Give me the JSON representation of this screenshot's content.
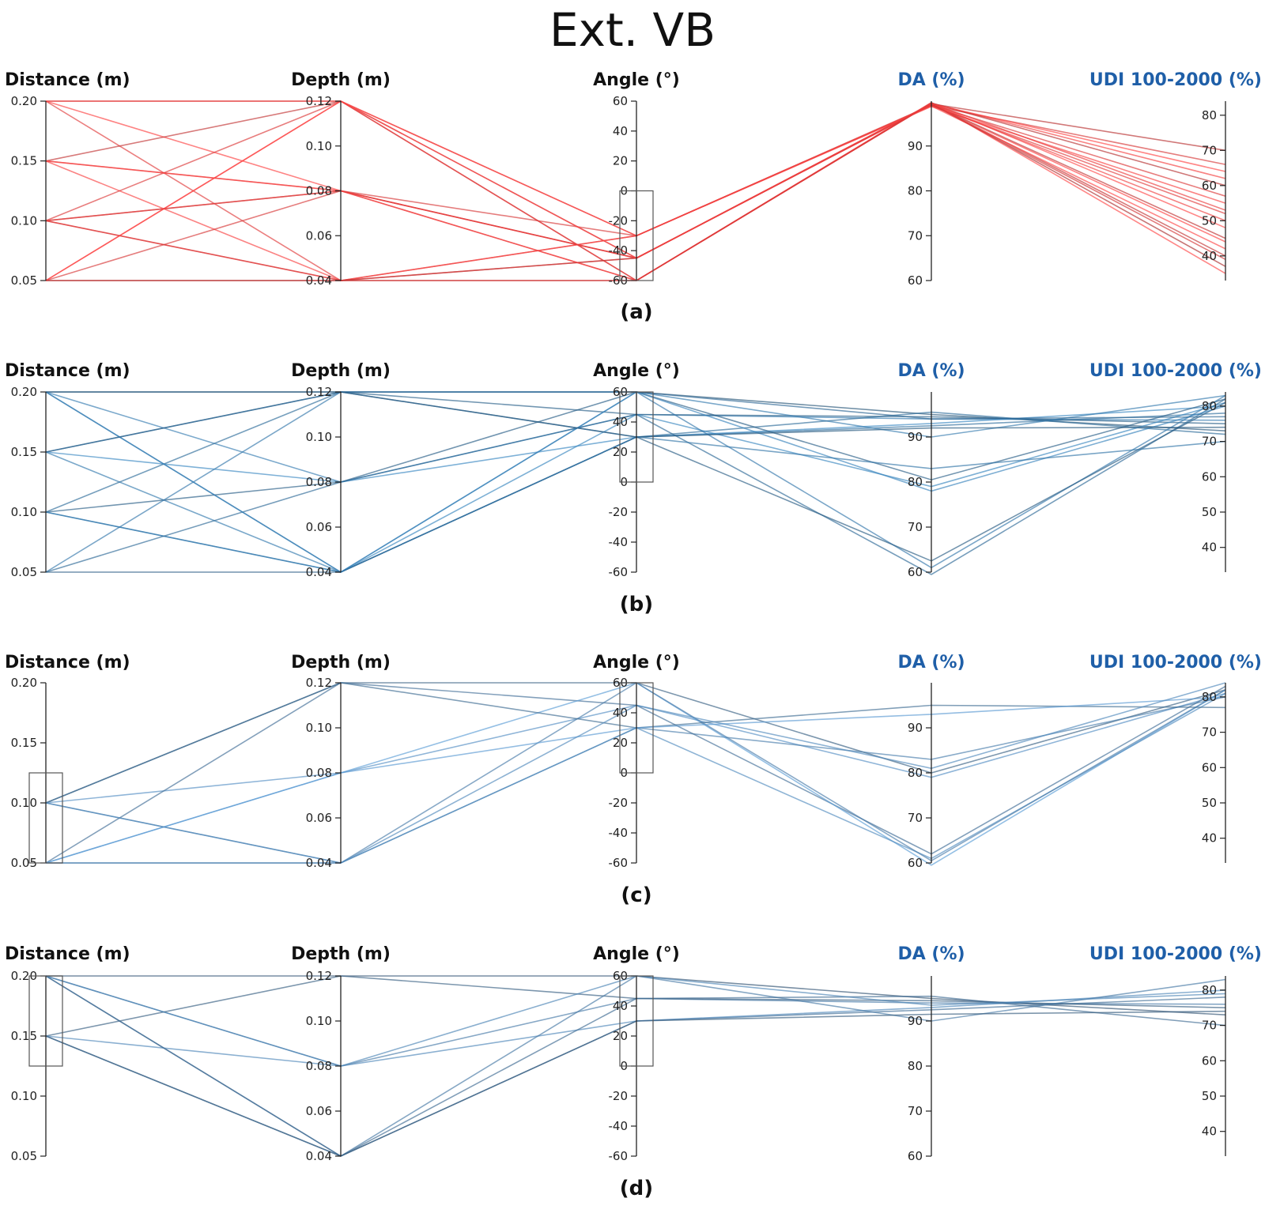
{
  "title": "Ext. VB",
  "chart_data": [
    {
      "type": "parallel-coordinates",
      "panel_label": "(a)",
      "color": "#e23a3a",
      "axes": [
        {
          "name": "Distance (m)",
          "color": "#111111",
          "min": 0.05,
          "max": 0.2,
          "ticks": [
            "0.20",
            "0.15",
            "0.10",
            "0.05"
          ],
          "tick_values": [
            0.2,
            0.15,
            0.1,
            0.05
          ]
        },
        {
          "name": "Depth (m)",
          "color": "#111111",
          "min": 0.04,
          "max": 0.12,
          "ticks": [
            "0.12",
            "0.10",
            "0.08",
            "0.06",
            "0.04"
          ],
          "tick_values": [
            0.12,
            0.1,
            0.08,
            0.06,
            0.04
          ]
        },
        {
          "name": "Angle (°)",
          "color": "#111111",
          "min": -60,
          "max": 60,
          "ticks": [
            "60",
            "40",
            "20",
            "0",
            "-20",
            "-40",
            "-60"
          ],
          "tick_values": [
            60,
            40,
            20,
            0,
            -20,
            -40,
            -60
          ]
        },
        {
          "name": "DA (%)",
          "color": "#1f5fa8",
          "min": 60,
          "max": 100,
          "ticks": [
            "90",
            "80",
            "70",
            "60"
          ],
          "tick_values": [
            90,
            80,
            70,
            60
          ]
        },
        {
          "name": "UDI 100-2000 (%)",
          "color": "#1f5fa8",
          "min": 33,
          "max": 84,
          "ticks": [
            "80",
            "70",
            "60",
            "50",
            "40"
          ],
          "tick_values": [
            80,
            70,
            60,
            50,
            40
          ]
        }
      ],
      "brushes": [
        {
          "axis": 2,
          "from": -60,
          "to": 0
        }
      ],
      "lines": [
        [
          0.2,
          0.12,
          -60,
          99.5,
          37
        ],
        [
          0.2,
          0.08,
          -45,
          99.2,
          44
        ],
        [
          0.2,
          0.04,
          -30,
          99.0,
          52
        ],
        [
          0.15,
          0.12,
          -45,
          99.4,
          40
        ],
        [
          0.15,
          0.08,
          -60,
          99.6,
          48
        ],
        [
          0.15,
          0.04,
          -30,
          98.8,
          55
        ],
        [
          0.1,
          0.12,
          -30,
          99.1,
          57
        ],
        [
          0.1,
          0.08,
          -45,
          99.3,
          45
        ],
        [
          0.1,
          0.04,
          -60,
          99.7,
          35
        ],
        [
          0.05,
          0.12,
          -60,
          99.5,
          62
        ],
        [
          0.05,
          0.08,
          -30,
          99.0,
          66
        ],
        [
          0.05,
          0.04,
          -45,
          99.4,
          70
        ],
        [
          0.2,
          0.12,
          -30,
          98.9,
          42
        ],
        [
          0.15,
          0.08,
          -45,
          99.2,
          50
        ],
        [
          0.1,
          0.04,
          -45,
          99.3,
          39
        ],
        [
          0.05,
          0.04,
          -60,
          99.6,
          60
        ],
        [
          0.05,
          0.12,
          -45,
          99.4,
          64
        ],
        [
          0.1,
          0.08,
          -60,
          99.5,
          53
        ]
      ]
    },
    {
      "type": "parallel-coordinates",
      "panel_label": "(b)",
      "color": "#2e6e9e",
      "axes": [
        {
          "name": "Distance (m)",
          "color": "#111111",
          "min": 0.05,
          "max": 0.2,
          "ticks": [
            "0.20",
            "0.15",
            "0.10",
            "0.05"
          ],
          "tick_values": [
            0.2,
            0.15,
            0.1,
            0.05
          ]
        },
        {
          "name": "Depth (m)",
          "color": "#111111",
          "min": 0.04,
          "max": 0.12,
          "ticks": [
            "0.12",
            "0.10",
            "0.08",
            "0.06",
            "0.04"
          ],
          "tick_values": [
            0.12,
            0.1,
            0.08,
            0.06,
            0.04
          ]
        },
        {
          "name": "Angle (°)",
          "color": "#111111",
          "min": -60,
          "max": 60,
          "ticks": [
            "60",
            "40",
            "20",
            "0",
            "-20",
            "-40",
            "-60"
          ],
          "tick_values": [
            60,
            40,
            20,
            0,
            -20,
            -40,
            -60
          ]
        },
        {
          "name": "DA (%)",
          "color": "#1f5fa8",
          "min": 60,
          "max": 100,
          "ticks": [
            "90",
            "80",
            "70",
            "60"
          ],
          "tick_values": [
            90,
            80,
            70,
            60
          ]
        },
        {
          "name": "UDI 100-2000 (%)",
          "color": "#1f5fa8",
          "min": 33,
          "max": 84,
          "ticks": [
            "80",
            "70",
            "60",
            "50",
            "40"
          ],
          "tick_values": [
            80,
            70,
            60,
            50,
            40
          ]
        }
      ],
      "brushes": [
        {
          "axis": 2,
          "from": 0,
          "to": 60
        }
      ],
      "lines": [
        [
          0.2,
          0.12,
          60,
          95.0,
          73
        ],
        [
          0.2,
          0.08,
          45,
          94.0,
          76
        ],
        [
          0.2,
          0.04,
          30,
          92.5,
          78
        ],
        [
          0.15,
          0.12,
          45,
          94.5,
          75
        ],
        [
          0.15,
          0.08,
          30,
          93.0,
          80
        ],
        [
          0.15,
          0.04,
          60,
          90.0,
          83
        ],
        [
          0.1,
          0.12,
          30,
          95.5,
          72
        ],
        [
          0.1,
          0.08,
          60,
          80.5,
          82
        ],
        [
          0.1,
          0.04,
          45,
          79.0,
          81
        ],
        [
          0.05,
          0.12,
          60,
          61.0,
          83
        ],
        [
          0.05,
          0.08,
          45,
          59.5,
          82
        ],
        [
          0.05,
          0.04,
          30,
          62.5,
          81
        ],
        [
          0.2,
          0.04,
          60,
          78.0,
          80
        ],
        [
          0.1,
          0.04,
          30,
          83.0,
          70
        ],
        [
          0.15,
          0.12,
          60,
          94.0,
          77
        ],
        [
          0.2,
          0.12,
          30,
          92.0,
          74
        ]
      ]
    },
    {
      "type": "parallel-coordinates",
      "panel_label": "(c)",
      "color": "#4a7fae",
      "axes": [
        {
          "name": "Distance (m)",
          "color": "#111111",
          "min": 0.05,
          "max": 0.2,
          "ticks": [
            "0.20",
            "0.15",
            "0.10",
            "0.05"
          ],
          "tick_values": [
            0.2,
            0.15,
            0.1,
            0.05
          ]
        },
        {
          "name": "Depth (m)",
          "color": "#111111",
          "min": 0.04,
          "max": 0.12,
          "ticks": [
            "0.12",
            "0.10",
            "0.08",
            "0.06",
            "0.04"
          ],
          "tick_values": [
            0.12,
            0.1,
            0.08,
            0.06,
            0.04
          ]
        },
        {
          "name": "Angle (°)",
          "color": "#111111",
          "min": -60,
          "max": 60,
          "ticks": [
            "60",
            "40",
            "20",
            "0",
            "-20",
            "-40",
            "-60"
          ],
          "tick_values": [
            60,
            40,
            20,
            0,
            -20,
            -40,
            -60
          ]
        },
        {
          "name": "DA (%)",
          "color": "#1f5fa8",
          "min": 60,
          "max": 100,
          "ticks": [
            "90",
            "80",
            "70",
            "60"
          ],
          "tick_values": [
            90,
            80,
            70,
            60
          ]
        },
        {
          "name": "UDI 100-2000 (%)",
          "color": "#1f5fa8",
          "min": 33,
          "max": 84,
          "ticks": [
            "80",
            "70",
            "60",
            "50",
            "40"
          ],
          "tick_values": [
            80,
            70,
            60,
            50,
            40
          ]
        }
      ],
      "brushes": [
        {
          "axis": 0,
          "from": 0.05,
          "to": 0.125
        },
        {
          "axis": 2,
          "from": 0,
          "to": 60
        }
      ],
      "lines": [
        [
          0.1,
          0.12,
          60,
          80.0,
          82
        ],
        [
          0.1,
          0.08,
          45,
          79.0,
          81
        ],
        [
          0.1,
          0.04,
          30,
          83.0,
          80
        ],
        [
          0.05,
          0.12,
          45,
          62.0,
          83
        ],
        [
          0.05,
          0.08,
          60,
          59.5,
          82
        ],
        [
          0.05,
          0.04,
          30,
          61.0,
          81
        ],
        [
          0.05,
          0.04,
          60,
          60.5,
          82
        ],
        [
          0.1,
          0.12,
          30,
          95.0,
          77
        ],
        [
          0.05,
          0.08,
          30,
          93.0,
          80
        ],
        [
          0.1,
          0.04,
          45,
          81.0,
          84
        ]
      ]
    },
    {
      "type": "parallel-coordinates",
      "panel_label": "(d)",
      "color": "#3f6d96",
      "axes": [
        {
          "name": "Distance (m)",
          "color": "#111111",
          "min": 0.05,
          "max": 0.2,
          "ticks": [
            "0.20",
            "0.15",
            "0.10",
            "0.05"
          ],
          "tick_values": [
            0.2,
            0.15,
            0.1,
            0.05
          ]
        },
        {
          "name": "Depth (m)",
          "color": "#111111",
          "min": 0.04,
          "max": 0.12,
          "ticks": [
            "0.12",
            "0.10",
            "0.08",
            "0.06",
            "0.04"
          ],
          "tick_values": [
            0.12,
            0.1,
            0.08,
            0.06,
            0.04
          ]
        },
        {
          "name": "Angle (°)",
          "color": "#111111",
          "min": -60,
          "max": 60,
          "ticks": [
            "60",
            "40",
            "20",
            "0",
            "-20",
            "-40",
            "-60"
          ],
          "tick_values": [
            60,
            40,
            20,
            0,
            -20,
            -40,
            -60
          ]
        },
        {
          "name": "DA (%)",
          "color": "#1f5fa8",
          "min": 60,
          "max": 100,
          "ticks": [
            "90",
            "80",
            "70",
            "60"
          ],
          "tick_values": [
            90,
            80,
            70,
            60
          ]
        },
        {
          "name": "UDI 100-2000 (%)",
          "color": "#1f5fa8",
          "min": 33,
          "max": 84,
          "ticks": [
            "80",
            "70",
            "60",
            "50",
            "40"
          ],
          "tick_values": [
            80,
            70,
            60,
            50,
            40
          ]
        }
      ],
      "brushes": [
        {
          "axis": 0,
          "from": 0.125,
          "to": 0.2
        },
        {
          "axis": 2,
          "from": 0,
          "to": 60
        }
      ],
      "lines": [
        [
          0.2,
          0.12,
          60,
          95.0,
          73
        ],
        [
          0.2,
          0.08,
          45,
          94.0,
          76
        ],
        [
          0.2,
          0.04,
          30,
          92.5,
          78
        ],
        [
          0.15,
          0.12,
          45,
          94.5,
          75
        ],
        [
          0.15,
          0.08,
          30,
          93.0,
          80
        ],
        [
          0.15,
          0.04,
          60,
          90.0,
          83
        ],
        [
          0.2,
          0.04,
          45,
          95.5,
          70
        ],
        [
          0.15,
          0.04,
          30,
          91.5,
          74
        ],
        [
          0.2,
          0.08,
          60,
          93.5,
          79
        ]
      ]
    }
  ]
}
